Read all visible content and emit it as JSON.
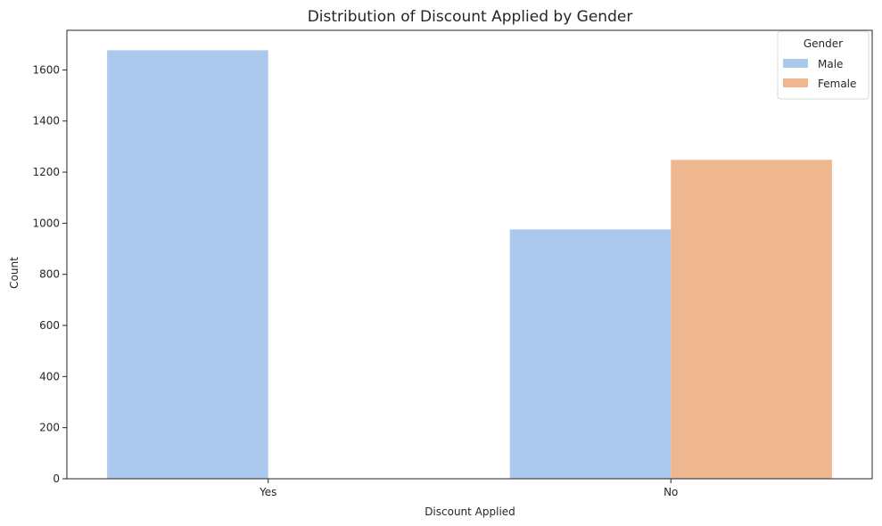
{
  "chart_data": {
    "type": "bar",
    "title": "Distribution of Discount Applied by Gender",
    "xlabel": "Discount Applied",
    "ylabel": "Count",
    "categories": [
      "Yes",
      "No"
    ],
    "series": [
      {
        "name": "Male",
        "color": "#abc9ec",
        "values": [
          1677,
          976
        ]
      },
      {
        "name": "Female",
        "color": "#efb790",
        "values": [
          0,
          1248
        ]
      }
    ],
    "ylim": [
      0,
      1755
    ],
    "yticks": [
      0,
      200,
      400,
      600,
      800,
      1000,
      1200,
      1400,
      1600
    ],
    "legend": {
      "title": "Gender",
      "placement": "top-right"
    },
    "grid": false
  }
}
